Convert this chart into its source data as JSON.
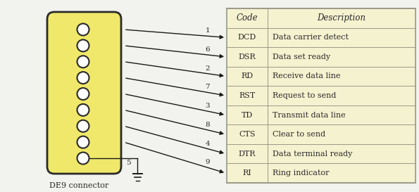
{
  "bg_color": "#f2f2ee",
  "connector_color": "#f0e86a",
  "connector_border": "#2a2a2a",
  "table_bg": "#f5f2d0",
  "table_border": "#999988",
  "line_color": "#1a1a1a",
  "text_color": "#2a2a2a",
  "codes": [
    "DCD",
    "DSR",
    "RD",
    "RST",
    "TD",
    "CTS",
    "DTR",
    "RI"
  ],
  "descriptions": [
    "Data carrier detect",
    "Data set ready",
    "Receive data line",
    "Request to send",
    "Transmit data line",
    "Clear to send",
    "Data terminal ready",
    "Ring indicator"
  ],
  "pin_numbers": [
    "1",
    "6",
    "2",
    "7",
    "3",
    "8",
    "4",
    "9"
  ],
  "connector_label": "DE9 connector",
  "ground_label": "5",
  "header": [
    "Code",
    "Description"
  ],
  "fig_w": 5.95,
  "fig_h": 2.73,
  "dpi": 100
}
